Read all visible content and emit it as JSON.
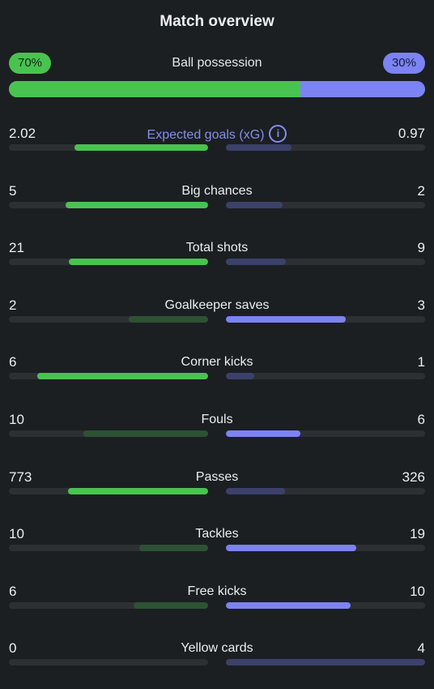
{
  "title": "Match overview",
  "possession": {
    "label": "Ball possession",
    "home_pct": "70%",
    "away_pct": "30%",
    "home_fraction": 0.7
  },
  "info_icon_glyph": "i",
  "colors": {
    "home": "#49c350",
    "home_dim": "#2d5233",
    "away": "#7c83f2",
    "away_dim": "#3c416b",
    "track": "#2c3033",
    "background": "#1b1f22"
  },
  "stats": [
    {
      "label": "Expected goals (xG)",
      "home": "2.02",
      "away": "0.97",
      "home_fraction": 0.67,
      "away_fraction": 0.33,
      "leader": "home",
      "has_info": true
    },
    {
      "label": "Big chances",
      "home": "5",
      "away": "2",
      "home_fraction": 0.715,
      "away_fraction": 0.285,
      "leader": "home"
    },
    {
      "label": "Total shots",
      "home": "21",
      "away": "9",
      "home_fraction": 0.7,
      "away_fraction": 0.3,
      "leader": "home"
    },
    {
      "label": "Goalkeeper saves",
      "home": "2",
      "away": "3",
      "home_fraction": 0.4,
      "away_fraction": 0.6,
      "leader": "away"
    },
    {
      "label": "Corner kicks",
      "home": "6",
      "away": "1",
      "home_fraction": 0.857,
      "away_fraction": 0.143,
      "leader": "home"
    },
    {
      "label": "Fouls",
      "home": "10",
      "away": "6",
      "home_fraction": 0.625,
      "away_fraction": 0.375,
      "leader": "away"
    },
    {
      "label": "Passes",
      "home": "773",
      "away": "326",
      "home_fraction": 0.703,
      "away_fraction": 0.297,
      "leader": "home"
    },
    {
      "label": "Tackles",
      "home": "10",
      "away": "19",
      "home_fraction": 0.345,
      "away_fraction": 0.655,
      "leader": "away"
    },
    {
      "label": "Free kicks",
      "home": "6",
      "away": "10",
      "home_fraction": 0.375,
      "away_fraction": 0.625,
      "leader": "away"
    },
    {
      "label": "Yellow cards",
      "home": "0",
      "away": "4",
      "home_fraction": 0.0,
      "away_fraction": 1.0,
      "leader": "home"
    }
  ]
}
